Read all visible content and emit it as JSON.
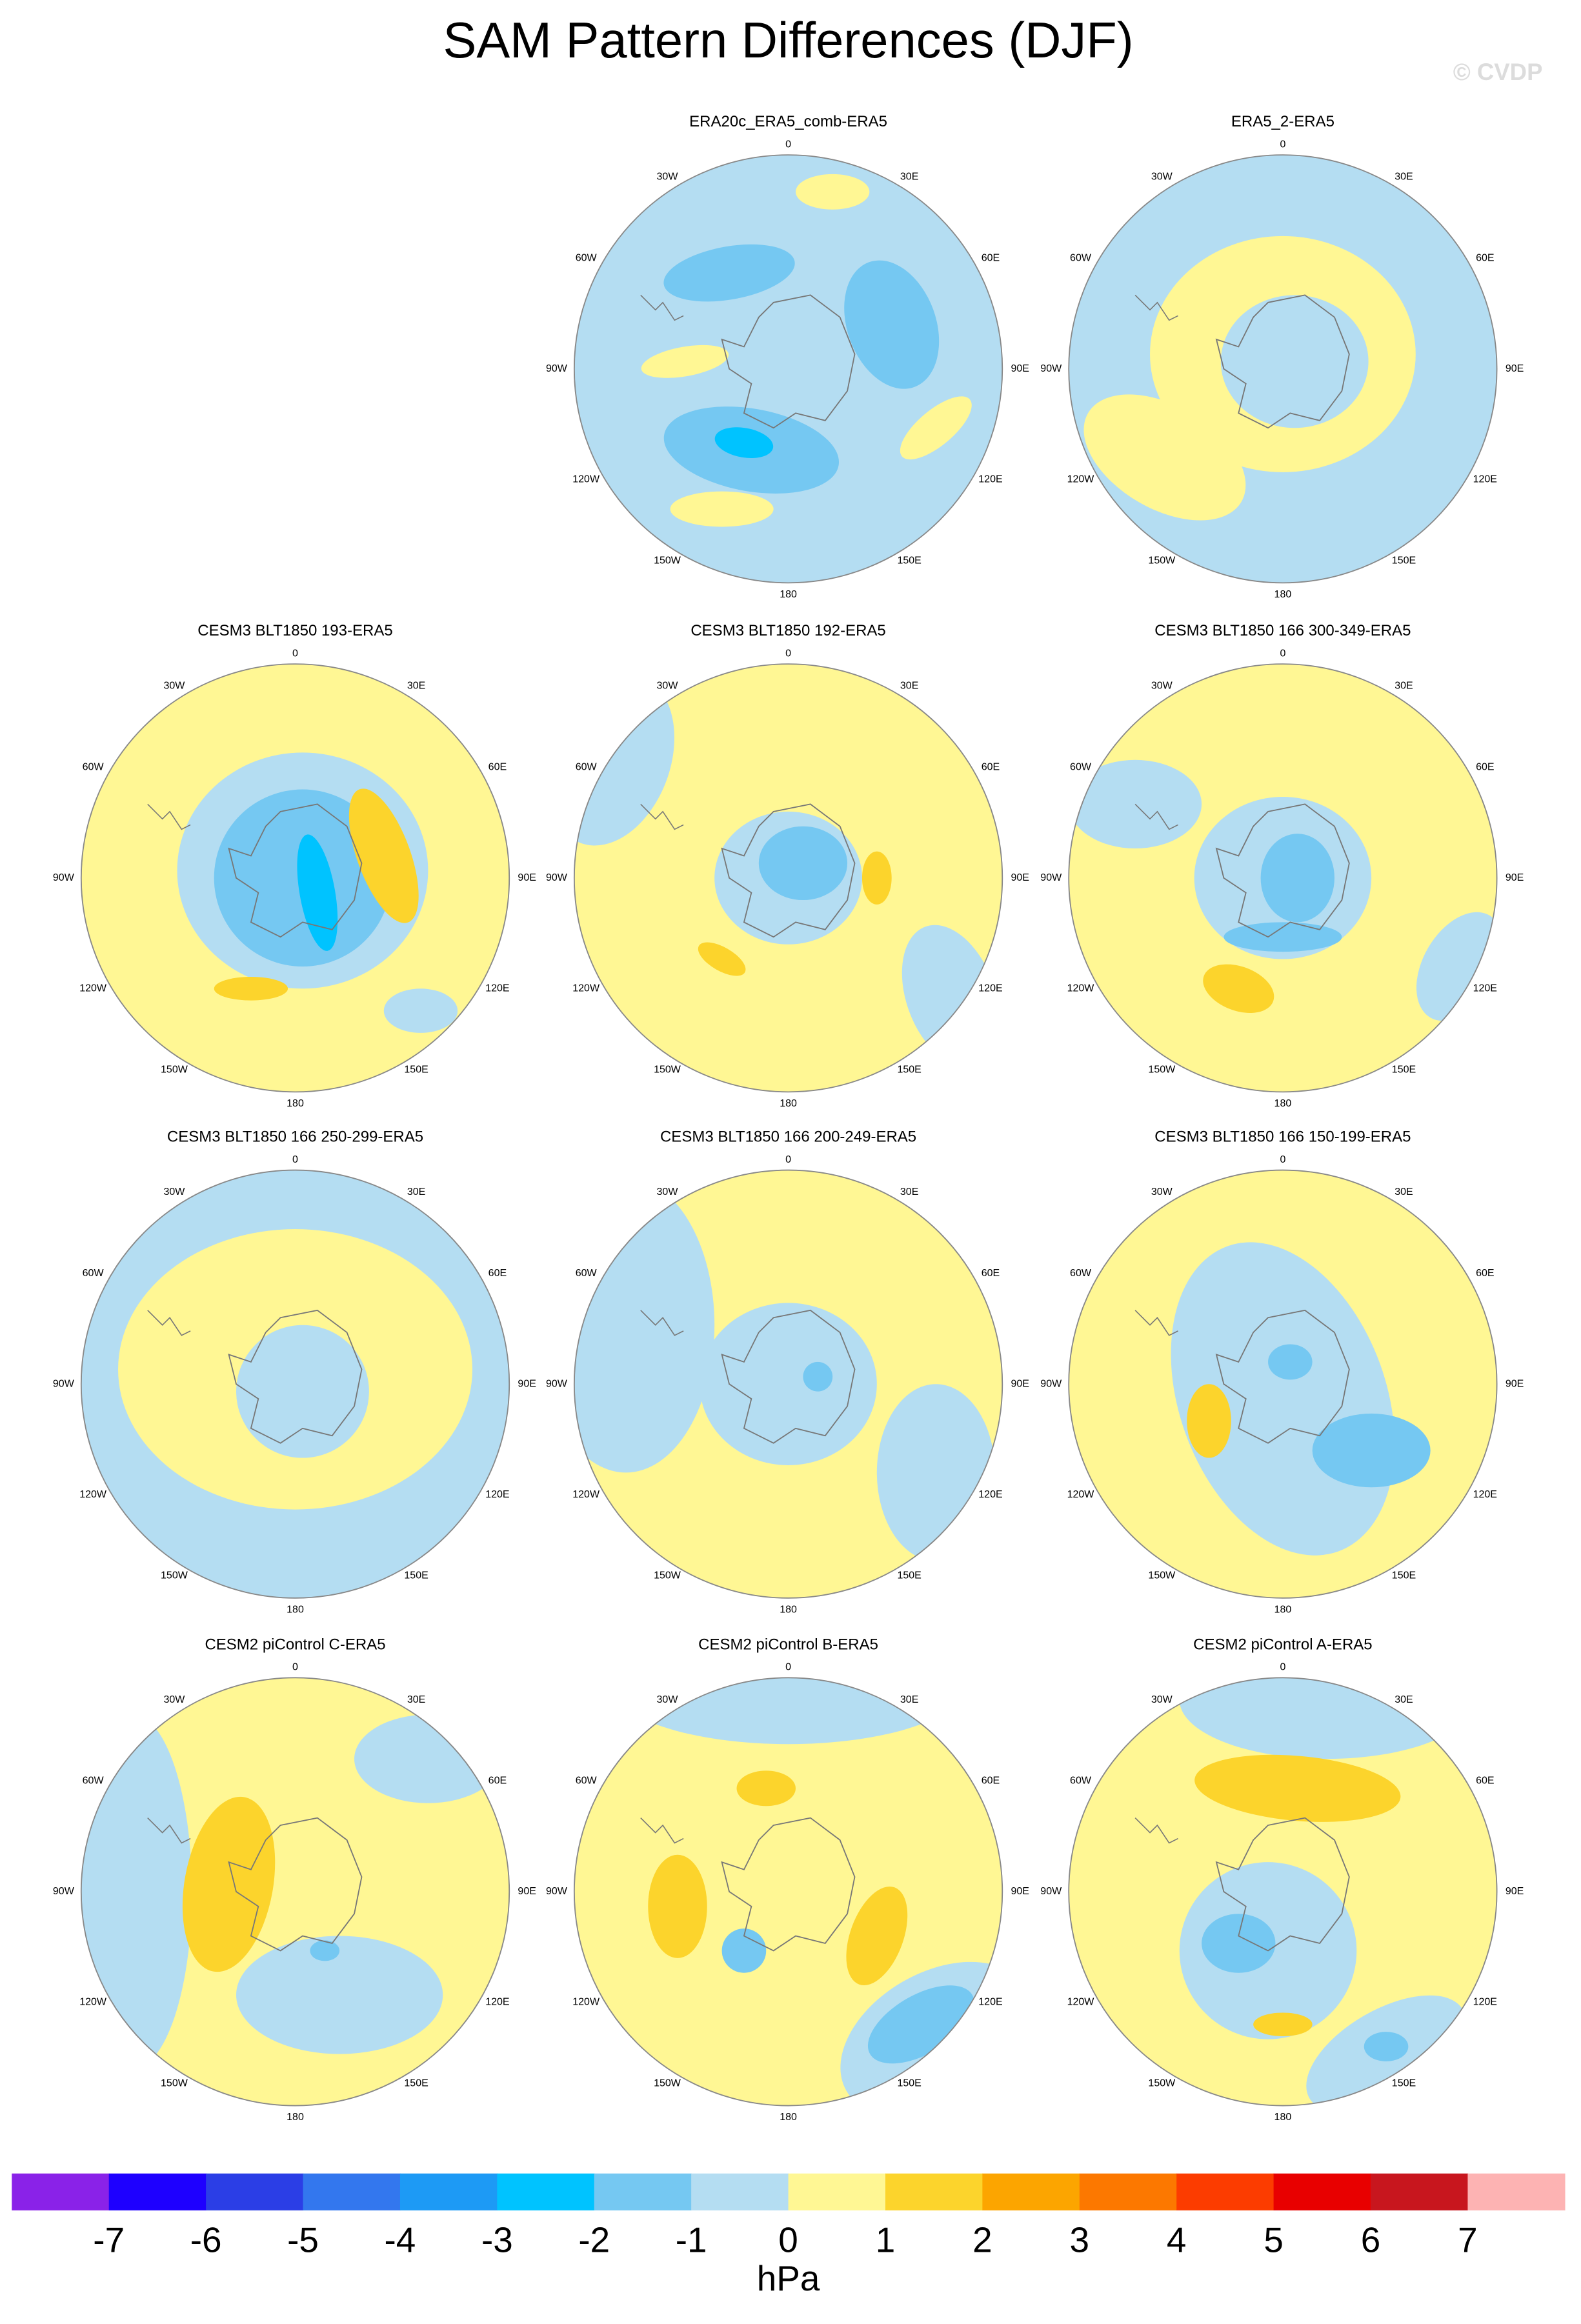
{
  "title": "SAM Pattern Differences (DJF)",
  "watermark": "© CVDP",
  "panels": [
    {
      "title": "ERA20c_ERA5_comb-ERA5"
    },
    {
      "title": "ERA5_2-ERA5"
    },
    {
      "title": "CESM3 BLT1850 193-ERA5"
    },
    {
      "title": "CESM3 BLT1850 192-ERA5"
    },
    {
      "title": "CESM3 BLT1850 166 300-349-ERA5"
    },
    {
      "title": "CESM3 BLT1850 166 250-299-ERA5"
    },
    {
      "title": "CESM3 BLT1850 166 200-249-ERA5"
    },
    {
      "title": "CESM3 BLT1850 166 150-199-ERA5"
    },
    {
      "title": "CESM2 piControl C-ERA5"
    },
    {
      "title": "CESM2 piControl B-ERA5"
    },
    {
      "title": "CESM2 piControl A-ERA5"
    }
  ],
  "longitude_labels": [
    "0",
    "30E",
    "60E",
    "90E",
    "120E",
    "150E",
    "180",
    "150W",
    "120W",
    "90W",
    "60W",
    "30W"
  ],
  "colorbar": {
    "colors": [
      "#8a22e8",
      "#1e00ff",
      "#2b3ee6",
      "#3377ee",
      "#1d9af5",
      "#00c3ff",
      "#75c8f2",
      "#b4ddf2",
      "#fff794",
      "#fcd42c",
      "#fca500",
      "#fc7800",
      "#fc3c00",
      "#e80000",
      "#c8161e",
      "#fdb3b3"
    ],
    "ticks": [
      -7,
      -6,
      -5,
      -4,
      -3,
      -2,
      -1,
      0,
      1,
      2,
      3,
      4,
      5,
      6,
      7
    ],
    "unit": "hPa"
  }
}
